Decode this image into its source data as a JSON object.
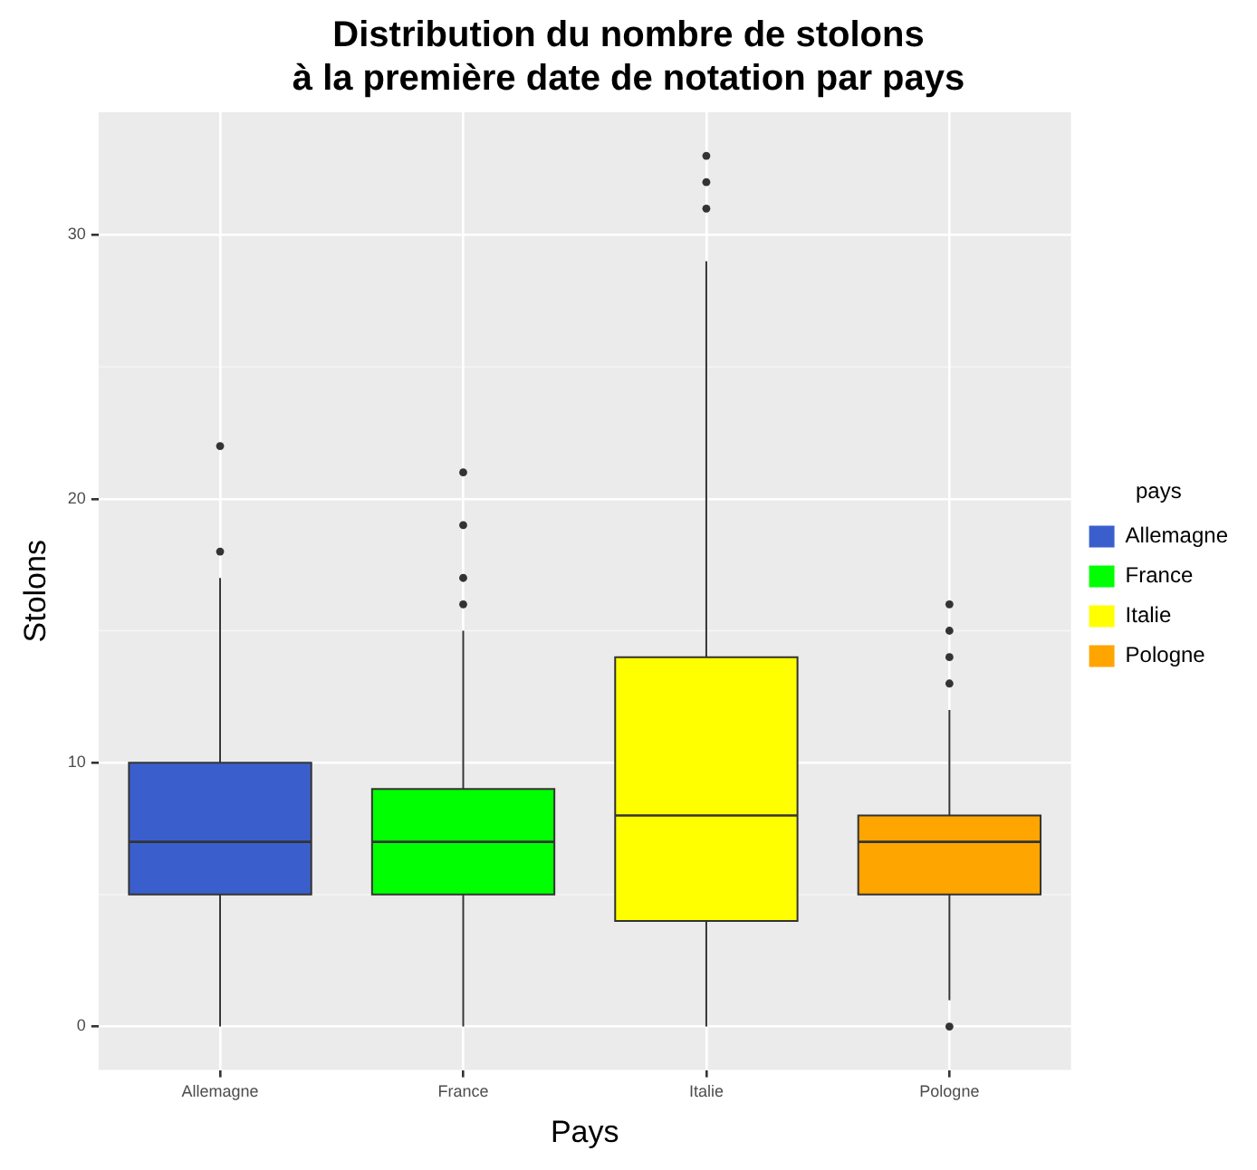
{
  "chart_data": {
    "type": "box",
    "title": "Distribution du nombre de stolons\nà la première date de notation par pays",
    "xlabel": "Pays",
    "ylabel": "Stolons",
    "legend_title": "pays",
    "categories": [
      "Allemagne",
      "France",
      "Italie",
      "Pologne"
    ],
    "series": [
      {
        "name": "Allemagne",
        "color": "#3a5fcd",
        "boxes": [
          {
            "low": 0,
            "q1": 5,
            "median": 7,
            "q3": 10,
            "high": 17,
            "outliers": [
              18,
              22
            ]
          },
          null,
          null,
          null
        ]
      },
      {
        "name": "France",
        "color": "#00ff00",
        "boxes": [
          null,
          {
            "low": 0,
            "q1": 5,
            "median": 7,
            "q3": 9,
            "high": 15,
            "outliers": [
              16,
              17,
              19,
              21
            ]
          },
          null,
          null
        ]
      },
      {
        "name": "Italie",
        "color": "#ffff00",
        "boxes": [
          null,
          null,
          {
            "low": 0,
            "q1": 4,
            "median": 8,
            "q3": 14,
            "high": 29,
            "outliers": [
              31,
              32,
              33
            ]
          },
          null
        ]
      },
      {
        "name": "Pologne",
        "color": "#ffa500",
        "boxes": [
          null,
          null,
          null,
          {
            "low": 1,
            "q1": 5,
            "median": 7,
            "q3": 8,
            "high": 12,
            "outliers": [
              0,
              13,
              14,
              15,
              16
            ]
          }
        ]
      }
    ],
    "ylim": [
      -1.65,
      34.65
    ],
    "yticks": [
      0,
      10,
      20,
      30
    ],
    "grid": true,
    "legend": "right"
  }
}
